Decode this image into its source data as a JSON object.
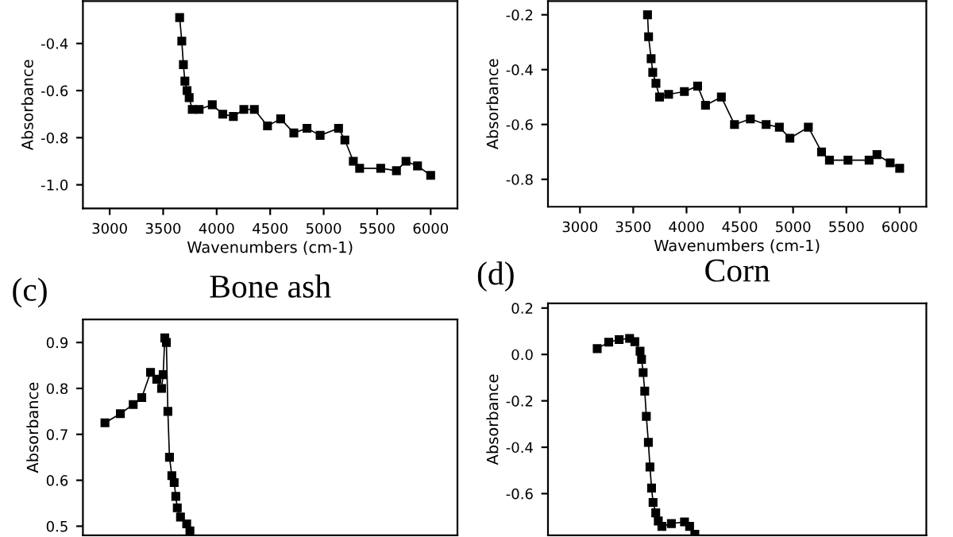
{
  "chart_data": [
    {
      "type": "line",
      "xlabel": "Wavenumbers (cm-1)",
      "ylabel": "Absorbance",
      "marker": "square",
      "line_style": "solid",
      "grid": false,
      "legend": false,
      "xlim": [
        2750,
        6250
      ],
      "xticks": [
        3000,
        3500,
        4000,
        4500,
        5000,
        5500,
        6000
      ],
      "ylim": [
        -1.1,
        -0.22
      ],
      "yticks": [
        {
          "value": -1.0,
          "label": "-1.0"
        },
        -0.8,
        -0.6,
        -0.4
      ],
      "series": [
        {
          "color": "#000000",
          "x": [
            3654,
            3674,
            3689,
            3703,
            3723,
            3743,
            3772,
            3836,
            3959,
            4057,
            4156,
            4254,
            4352,
            4475,
            4598,
            4721,
            4844,
            4967,
            5139,
            5198,
            5277,
            5336,
            5533,
            5680,
            5769,
            5877,
            6000
          ],
          "values": [
            -0.29,
            -0.39,
            -0.49,
            -0.56,
            -0.6,
            -0.63,
            -0.68,
            -0.68,
            -0.66,
            -0.7,
            -0.71,
            -0.68,
            -0.68,
            -0.75,
            -0.72,
            -0.78,
            -0.76,
            -0.79,
            -0.76,
            -0.81,
            -0.9,
            -0.93,
            -0.93,
            -0.94,
            -0.9,
            -0.92,
            -0.96
          ]
        }
      ]
    },
    {
      "type": "line",
      "xlabel": "Wavenumbers (cm-1)",
      "ylabel": "Absorbance",
      "marker": "square",
      "line_style": "solid",
      "grid": false,
      "legend": false,
      "xlim": [
        2700,
        6250
      ],
      "xticks": [
        3000,
        3500,
        4000,
        4500,
        5000,
        5500,
        6000
      ],
      "ylim": [
        -0.9,
        -0.15
      ],
      "yticks": [
        -0.8,
        -0.6,
        -0.4,
        -0.2
      ],
      "series": [
        {
          "color": "#000000",
          "x": [
            3634,
            3644,
            3668,
            3683,
            3713,
            3747,
            3832,
            3980,
            4104,
            4178,
            4327,
            4450,
            4599,
            4747,
            4871,
            4970,
            5143,
            5267,
            5341,
            5515,
            5713,
            5787,
            5911,
            6000
          ],
          "values": [
            -0.2,
            -0.28,
            -0.36,
            -0.41,
            -0.45,
            -0.5,
            -0.49,
            -0.48,
            -0.46,
            -0.53,
            -0.5,
            -0.6,
            -0.58,
            -0.6,
            -0.61,
            -0.65,
            -0.61,
            -0.7,
            -0.73,
            -0.73,
            -0.73,
            -0.71,
            -0.74,
            -0.76
          ]
        }
      ]
    },
    {
      "type": "line",
      "title": "Bone ash",
      "annotations": [
        "(c)"
      ],
      "ylabel": "Absorbance",
      "marker": "square",
      "line_style": "solid",
      "grid": false,
      "legend": false,
      "tick_labels": "y",
      "xlim": [
        2750,
        6250
      ],
      "ylim": [
        0.48,
        0.95
      ],
      "yticks": [
        0.5,
        0.6,
        0.7,
        0.8,
        0.9
      ],
      "series": [
        {
          "color": "#000000",
          "x": [
            2956,
            3100,
            3220,
            3300,
            3382,
            3440,
            3485,
            3500,
            3515,
            3530,
            3544,
            3559,
            3581,
            3603,
            3618,
            3632,
            3662,
            3720,
            3750
          ],
          "values": [
            0.725,
            0.745,
            0.765,
            0.78,
            0.835,
            0.82,
            0.8,
            0.83,
            0.91,
            0.9,
            0.75,
            0.65,
            0.61,
            0.595,
            0.565,
            0.54,
            0.52,
            0.505,
            0.49
          ]
        }
      ]
    },
    {
      "type": "line",
      "title": "Corn",
      "annotations": [
        "(d)"
      ],
      "ylabel": "Absorbance",
      "marker": "square",
      "line_style": "solid",
      "grid": false,
      "legend": false,
      "tick_labels": "y",
      "xlim": [
        2700,
        6250
      ],
      "ylim": [
        -0.78,
        0.22
      ],
      "yticks": [
        -0.6,
        -0.4,
        -0.2,
        {
          "value": 0.0,
          "label": "0.0"
        },
        0.2
      ],
      "series": [
        {
          "color": "#000000",
          "x": [
            3162,
            3270,
            3368,
            3466,
            3515,
            3564,
            3578,
            3593,
            3608,
            3623,
            3642,
            3657,
            3672,
            3686,
            3711,
            3735,
            3769,
            3858,
            3981,
            4029,
            4078
          ],
          "values": [
            0.025,
            0.053,
            0.064,
            0.069,
            0.055,
            0.014,
            -0.021,
            -0.078,
            -0.158,
            -0.267,
            -0.379,
            -0.485,
            -0.576,
            -0.638,
            -0.683,
            -0.718,
            -0.741,
            -0.729,
            -0.722,
            -0.741,
            -0.775
          ]
        }
      ]
    }
  ]
}
